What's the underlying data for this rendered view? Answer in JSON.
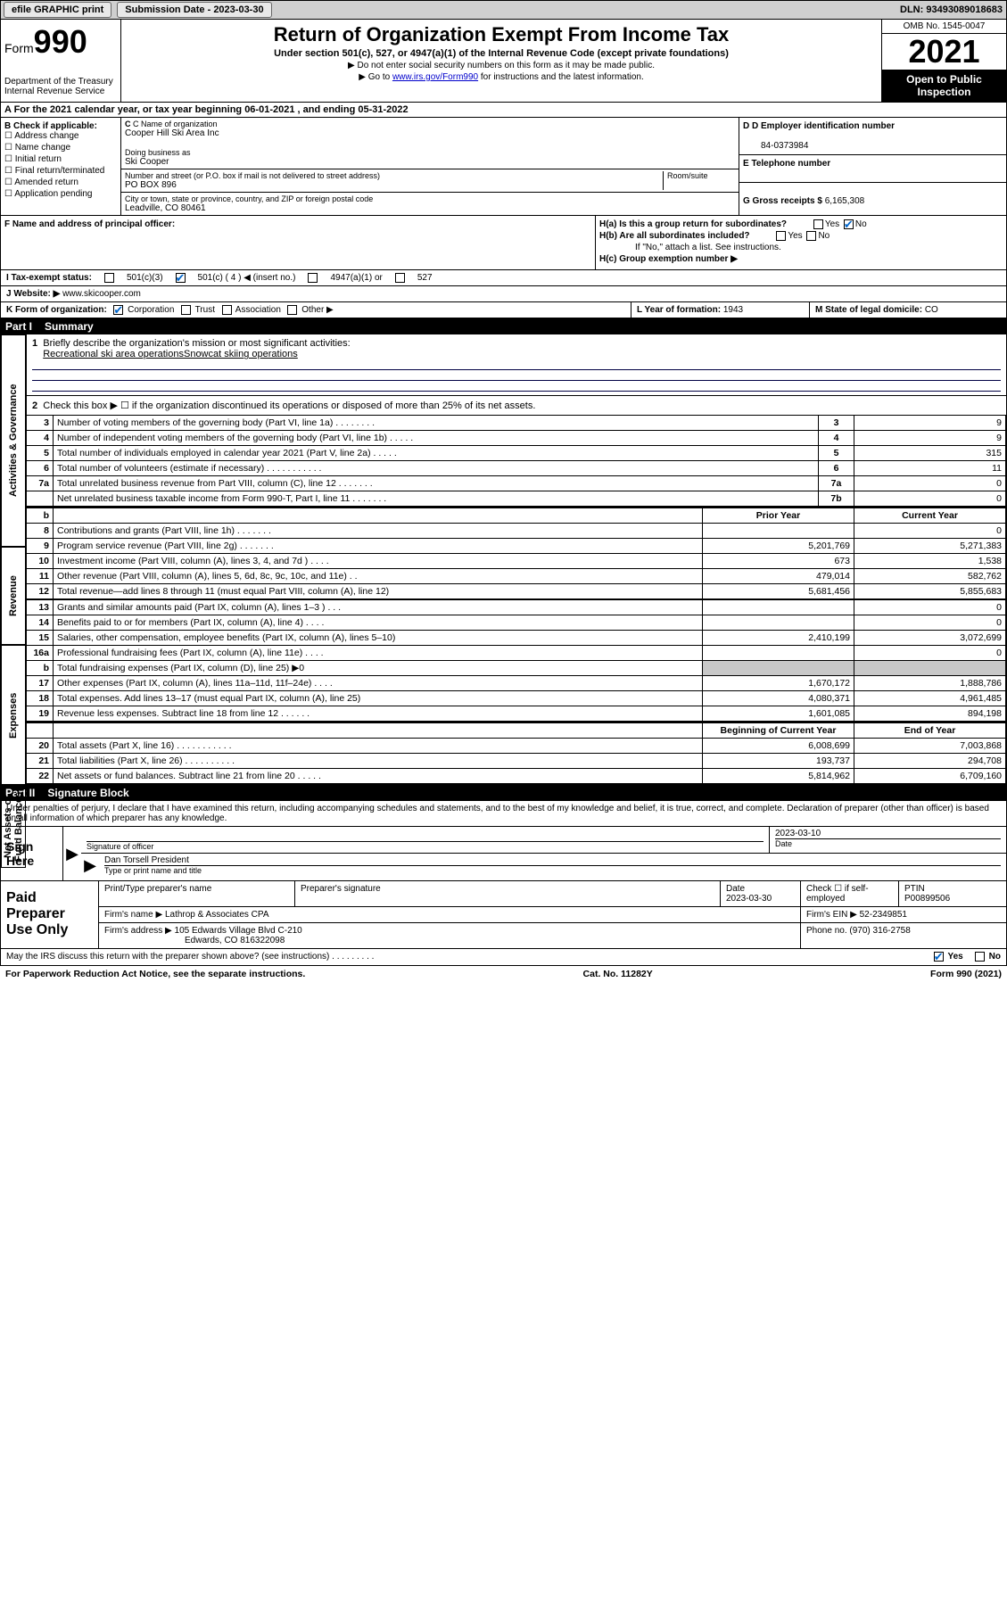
{
  "topbar": {
    "efile_label": "efile GRAPHIC print",
    "submission_label": "Submission Date - 2023-03-30",
    "dln_label": "DLN: 93493089018683"
  },
  "header": {
    "form_label": "Form",
    "form_number": "990",
    "title": "Return of Organization Exempt From Income Tax",
    "subtitle": "Under section 501(c), 527, or 4947(a)(1) of the Internal Revenue Code (except private foundations)",
    "note1": "▶ Do not enter social security numbers on this form as it may be made public.",
    "note2_prefix": "▶ Go to ",
    "note2_link": "www.irs.gov/Form990",
    "note2_suffix": " for instructions and the latest information.",
    "dept": "Department of the Treasury\nInternal Revenue Service",
    "omb": "OMB No. 1545-0047",
    "year": "2021",
    "inspection": "Open to Public Inspection"
  },
  "row_a": "A For the 2021 calendar year, or tax year beginning 06-01-2021   , and ending 05-31-2022",
  "section_b": {
    "title": "B Check if applicable:",
    "items": [
      "Address change",
      "Name change",
      "Initial return",
      "Final return/terminated",
      "Amended return",
      "Application pending"
    ]
  },
  "section_c": {
    "name_label": "C Name of organization",
    "name": "Cooper Hill Ski Area Inc",
    "dba_label": "Doing business as",
    "dba": "Ski Cooper",
    "addr_label": "Number and street (or P.O. box if mail is not delivered to street address)",
    "room_label": "Room/suite",
    "addr": "PO BOX 896",
    "city_label": "City or town, state or province, country, and ZIP or foreign postal code",
    "city": "Leadville, CO  80461"
  },
  "section_d": {
    "ein_label": "D Employer identification number",
    "ein": "84-0373984",
    "phone_label": "E Telephone number",
    "phone": "",
    "gross_label": "G Gross receipts $",
    "gross": "6,165,308"
  },
  "section_f": {
    "label": "F Name and address of principal officer:"
  },
  "section_h": {
    "ha": "H(a)  Is this a group return for subordinates?",
    "hb": "H(b)  Are all subordinates included?",
    "hb_note": "If \"No,\" attach a list. See instructions.",
    "hc": "H(c)  Group exemption number ▶",
    "yes": "Yes",
    "no": "No"
  },
  "row_i": {
    "label": "I   Tax-exempt status:",
    "opt1": "501(c)(3)",
    "opt2": "501(c) ( 4 ) ◀ (insert no.)",
    "opt3": "4947(a)(1) or",
    "opt4": "527"
  },
  "row_j": {
    "label": "J   Website: ▶ ",
    "url": "www.skicooper.com"
  },
  "row_k": {
    "k1": "K Form of organization:",
    "corp": "Corporation",
    "trust": "Trust",
    "assoc": "Association",
    "other": "Other ▶",
    "k2_label": "L Year of formation:",
    "k2_val": "1943",
    "k3_label": "M State of legal domicile:",
    "k3_val": "CO"
  },
  "part1": {
    "header_part": "Part I",
    "header_title": "Summary",
    "line1": "Briefly describe the organization's mission or most significant activities:",
    "mission": "Recreational ski area operationsSnowcat skiing operations",
    "line2": "Check this box ▶ ☐  if the organization discontinued its operations or disposed of more than 25% of its net assets.",
    "tabs": {
      "gov": "Activities & Governance",
      "rev": "Revenue",
      "exp": "Expenses",
      "net": "Net Assets or Fund Balances"
    },
    "gov_rows": [
      {
        "n": "3",
        "d": "Number of voting members of the governing body (Part VI, line 1a)   .   .   .   .   .   .   .   .",
        "b": "3",
        "v": "9"
      },
      {
        "n": "4",
        "d": "Number of independent voting members of the governing body (Part VI, line 1b)   .   .   .   .   .",
        "b": "4",
        "v": "9"
      },
      {
        "n": "5",
        "d": "Total number of individuals employed in calendar year 2021 (Part V, line 2a)   .   .   .   .   .",
        "b": "5",
        "v": "315"
      },
      {
        "n": "6",
        "d": "Total number of volunteers (estimate if necessary)   .   .   .   .   .   .   .   .   .   .   .",
        "b": "6",
        "v": "11"
      },
      {
        "n": "7a",
        "d": "Total unrelated business revenue from Part VIII, column (C), line 12   .   .   .   .   .   .   .",
        "b": "7a",
        "v": "0"
      },
      {
        "n": "",
        "d": "Net unrelated business taxable income from Form 990-T, Part I, line 11   .   .   .   .   .   .   .",
        "b": "7b",
        "v": "0"
      }
    ],
    "prior_year": "Prior Year",
    "current_year": "Current Year",
    "rev_rows": [
      {
        "n": "8",
        "d": "Contributions and grants (Part VIII, line 1h)   .   .   .   .   .   .   .",
        "p": "",
        "c": "0"
      },
      {
        "n": "9",
        "d": "Program service revenue (Part VIII, line 2g)   .   .   .   .   .   .   .",
        "p": "5,201,769",
        "c": "5,271,383"
      },
      {
        "n": "10",
        "d": "Investment income (Part VIII, column (A), lines 3, 4, and 7d )   .   .   .   .",
        "p": "673",
        "c": "1,538"
      },
      {
        "n": "11",
        "d": "Other revenue (Part VIII, column (A), lines 5, 6d, 8c, 9c, 10c, and 11e)   .   .",
        "p": "479,014",
        "c": "582,762"
      },
      {
        "n": "12",
        "d": "Total revenue—add lines 8 through 11 (must equal Part VIII, column (A), line 12)",
        "p": "5,681,456",
        "c": "5,855,683"
      }
    ],
    "exp_rows": [
      {
        "n": "13",
        "d": "Grants and similar amounts paid (Part IX, column (A), lines 1–3 )   .   .   .",
        "p": "",
        "c": "0"
      },
      {
        "n": "14",
        "d": "Benefits paid to or for members (Part IX, column (A), line 4)   .   .   .   .",
        "p": "",
        "c": "0"
      },
      {
        "n": "15",
        "d": "Salaries, other compensation, employee benefits (Part IX, column (A), lines 5–10)",
        "p": "2,410,199",
        "c": "3,072,699"
      },
      {
        "n": "16a",
        "d": "Professional fundraising fees (Part IX, column (A), line 11e)   .   .   .   .",
        "p": "",
        "c": "0"
      },
      {
        "n": "b",
        "d": "Total fundraising expenses (Part IX, column (D), line 25) ▶0",
        "p": "shade",
        "c": "shade"
      },
      {
        "n": "17",
        "d": "Other expenses (Part IX, column (A), lines 11a–11d, 11f–24e)   .   .   .   .",
        "p": "1,670,172",
        "c": "1,888,786"
      },
      {
        "n": "18",
        "d": "Total expenses. Add lines 13–17 (must equal Part IX, column (A), line 25)",
        "p": "4,080,371",
        "c": "4,961,485"
      },
      {
        "n": "19",
        "d": "Revenue less expenses. Subtract line 18 from line 12   .   .   .   .   .   .",
        "p": "1,601,085",
        "c": "894,198"
      }
    ],
    "begin_year": "Beginning of Current Year",
    "end_year": "End of Year",
    "net_rows": [
      {
        "n": "20",
        "d": "Total assets (Part X, line 16)   .   .   .   .   .   .   .   .   .   .   .",
        "p": "6,008,699",
        "c": "7,003,868"
      },
      {
        "n": "21",
        "d": "Total liabilities (Part X, line 26)   .   .   .   .   .   .   .   .   .   .",
        "p": "193,737",
        "c": "294,708"
      },
      {
        "n": "22",
        "d": "Net assets or fund balances. Subtract line 21 from line 20   .   .   .   .   .",
        "p": "5,814,962",
        "c": "6,709,160"
      }
    ]
  },
  "part2": {
    "header_part": "Part II",
    "header_title": "Signature Block",
    "perjury": "Under penalties of perjury, I declare that I have examined this return, including accompanying schedules and statements, and to the best of my knowledge and belief, it is true, correct, and complete. Declaration of preparer (other than officer) is based on all information of which preparer has any knowledge.",
    "sign_here": "Sign Here",
    "sig_officer": "Signature of officer",
    "date": "Date",
    "sig_date": "2023-03-10",
    "officer_name": "Dan Torsell President",
    "type_name": "Type or print name and title",
    "paid_prep": "Paid Preparer Use Only",
    "print_name": "Print/Type preparer's name",
    "prep_sig": "Preparer's signature",
    "prep_date": "2023-03-30",
    "check_if": "Check ☐ if self-employed",
    "ptin_label": "PTIN",
    "ptin": "P00899506",
    "firm_name_label": "Firm's name    ▶",
    "firm_name": "Lathrop & Associates CPA",
    "firm_ein_label": "Firm's EIN ▶",
    "firm_ein": "52-2349851",
    "firm_addr_label": "Firm's address ▶",
    "firm_addr": "105 Edwards Village Blvd C-210",
    "firm_city": "Edwards, CO  816322098",
    "phone_label": "Phone no.",
    "phone": "(970) 316-2758"
  },
  "footer": {
    "discuss": "May the IRS discuss this return with the preparer shown above? (see instructions)   .   .   .   .   .   .   .   .   .",
    "yes": "Yes",
    "no": "No",
    "paperwork": "For Paperwork Reduction Act Notice, see the separate instructions.",
    "catno": "Cat. No. 11282Y",
    "formno": "Form 990 (2021)"
  },
  "colors": {
    "checkmark": "#0066cc",
    "black": "#000000",
    "shade": "#c8c8c8"
  }
}
